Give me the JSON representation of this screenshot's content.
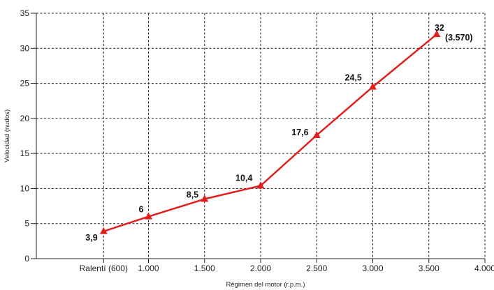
{
  "chart_data": {
    "type": "line",
    "xlabel": "Régimen del motor (r.p.m.)",
    "ylabel": "Velocidad (nudos)",
    "xlim": [
      0,
      4000
    ],
    "ylim": [
      0,
      35
    ],
    "grid": true,
    "x_ticks": [
      {
        "value": 600,
        "label": "Ralentí (600)"
      },
      {
        "value": 1000,
        "label": "1.000"
      },
      {
        "value": 1500,
        "label": "1.500"
      },
      {
        "value": 2000,
        "label": "2.000"
      },
      {
        "value": 2500,
        "label": "2.500"
      },
      {
        "value": 3000,
        "label": "3.000"
      },
      {
        "value": 3500,
        "label": "3.500"
      },
      {
        "value": 4000,
        "label": "4.000"
      }
    ],
    "y_ticks": [
      {
        "value": 0,
        "label": "0"
      },
      {
        "value": 5,
        "label": "5"
      },
      {
        "value": 10,
        "label": "10"
      },
      {
        "value": 15,
        "label": "15"
      },
      {
        "value": 20,
        "label": "20"
      },
      {
        "value": 25,
        "label": "25"
      },
      {
        "value": 30,
        "label": "30"
      },
      {
        "value": 35,
        "label": "35"
      }
    ],
    "series": [
      {
        "color": "#e0201c",
        "marker": "triangle",
        "points": [
          {
            "x": 600,
            "y": 3.9,
            "label": "3,9"
          },
          {
            "x": 1000,
            "y": 6,
            "label": "6"
          },
          {
            "x": 1500,
            "y": 8.5,
            "label": "8,5"
          },
          {
            "x": 2000,
            "y": 10.4,
            "label": "10,4"
          },
          {
            "x": 2500,
            "y": 17.6,
            "label": "17,6"
          },
          {
            "x": 3000,
            "y": 24.5,
            "label": "24,5"
          },
          {
            "x": 3570,
            "y": 32,
            "label": "32"
          }
        ]
      }
    ],
    "annotations": [
      {
        "text": "(3.570)",
        "x": 3570,
        "y": 32
      }
    ]
  }
}
